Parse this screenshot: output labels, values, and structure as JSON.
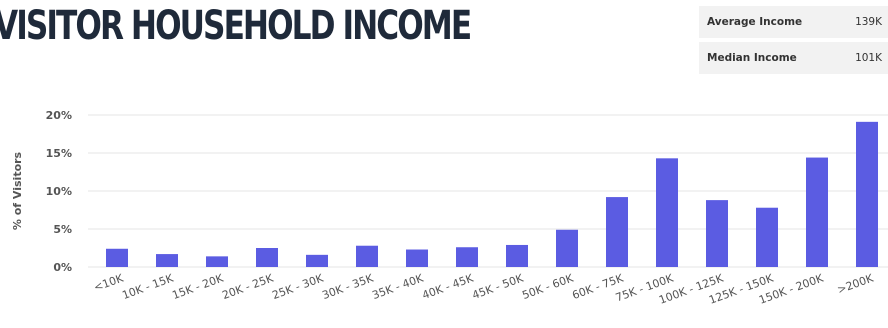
{
  "header": {
    "title": "VISITOR HOUSEHOLD INCOME"
  },
  "stats": [
    {
      "label": "Average Income",
      "value": "139K"
    },
    {
      "label": "Median Income",
      "value": "101K"
    }
  ],
  "colors": {
    "bar": "#5b5ce2",
    "grid": "#e6e6e6",
    "stat_background": "#f2f2f2",
    "title": "#1f2a3a"
  },
  "chart_data": {
    "type": "bar",
    "title": "",
    "xlabel": "",
    "ylabel": "% of Visitors",
    "ylim": [
      0,
      20
    ],
    "yticks": [
      0,
      5,
      10,
      15,
      20
    ],
    "ytick_labels": [
      "0%",
      "5%",
      "10%",
      "15%",
      "20%"
    ],
    "grid": true,
    "categories": [
      "<10K",
      "10K - 15K",
      "15K - 20K",
      "20K - 25K",
      "25K - 30K",
      "30K - 35K",
      "35K - 40K",
      "40K - 45K",
      "45K - 50K",
      "50K - 60K",
      "60K - 75K",
      "75K - 100K",
      "100K - 125K",
      "125K - 150K",
      "150K - 200K",
      ">200K"
    ],
    "values": [
      2.4,
      1.7,
      1.4,
      2.5,
      1.6,
      2.8,
      2.3,
      2.6,
      2.9,
      4.9,
      9.2,
      14.3,
      8.8,
      7.8,
      14.4,
      19.1
    ]
  }
}
